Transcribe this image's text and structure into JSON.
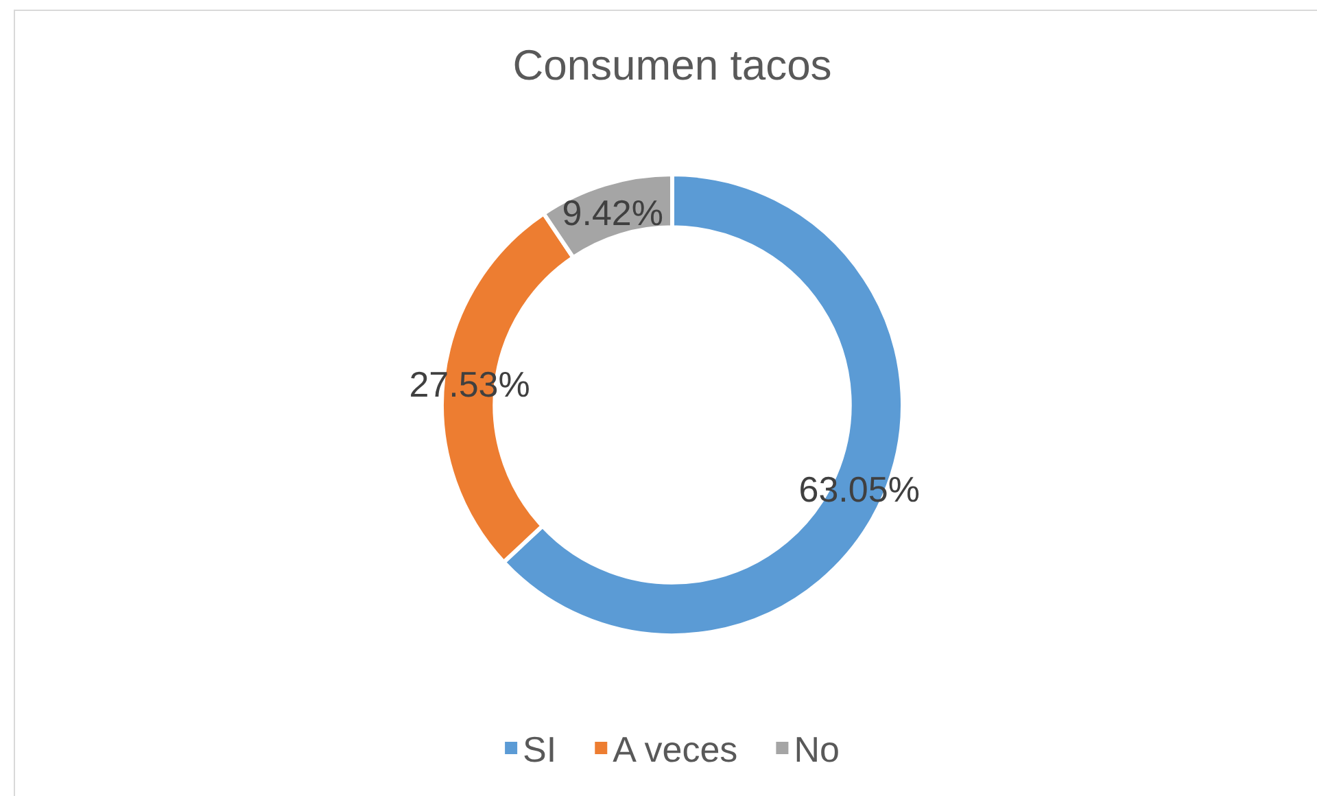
{
  "chart_data": {
    "type": "donut",
    "title": "Consumen tacos",
    "categories": [
      "SI",
      "A veces",
      "No"
    ],
    "values": [
      63.05,
      27.53,
      9.42
    ],
    "colors": [
      "#5b9bd5",
      "#ed7d31",
      "#a5a5a5"
    ],
    "value_labels": [
      "63.05%",
      "27.53%",
      "9.42%"
    ],
    "legend": "bottom"
  }
}
